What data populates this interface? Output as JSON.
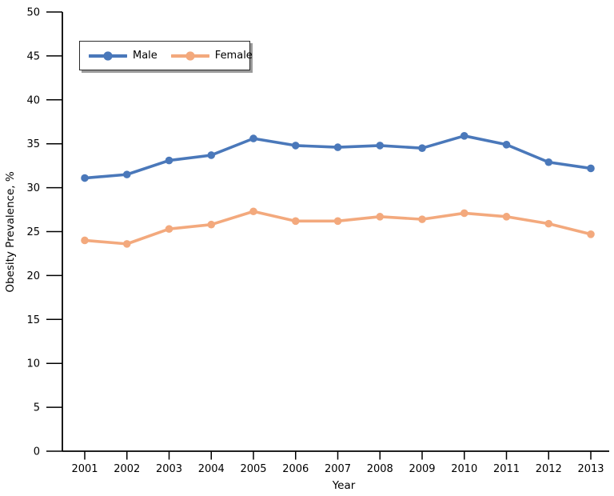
{
  "chart_data": {
    "type": "line",
    "title": "",
    "xlabel": "Year",
    "ylabel": "Obesity Prevalence, %",
    "x": [
      2001,
      2002,
      2003,
      2004,
      2005,
      2006,
      2007,
      2008,
      2009,
      2010,
      2011,
      2012,
      2013
    ],
    "series": [
      {
        "name": "Male",
        "color": "#4a78ba",
        "values": [
          31.1,
          31.5,
          33.1,
          33.7,
          35.6,
          34.8,
          34.6,
          34.8,
          34.5,
          35.9,
          34.9,
          32.9,
          32.2
        ]
      },
      {
        "name": "Female",
        "color": "#f3a97d",
        "values": [
          24.0,
          23.6,
          25.3,
          25.8,
          27.3,
          26.2,
          26.2,
          26.7,
          26.4,
          27.1,
          26.7,
          25.9,
          24.7
        ]
      }
    ],
    "ylim": [
      0,
      50
    ],
    "yticks": [
      0,
      5,
      10,
      15,
      20,
      25,
      30,
      35,
      40,
      45,
      50
    ],
    "grid": false,
    "legend_position": "inside-upper-left",
    "axis_color": "#000000",
    "background_color": "#ffffff"
  }
}
